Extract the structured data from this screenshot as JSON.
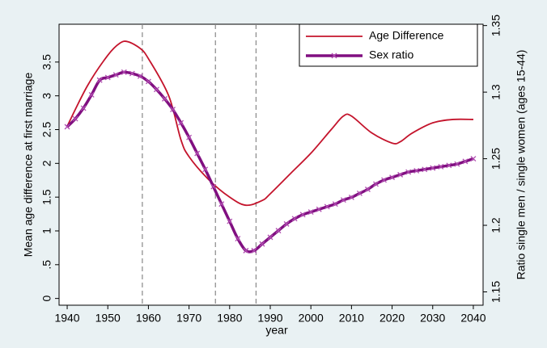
{
  "chart_data": {
    "type": "line",
    "x_label": "year",
    "y_label": "Mean age difference at first marriage",
    "y2_label": "Ratio single men / single women (ages 15-44)",
    "xlim": [
      1938,
      2042.4
    ],
    "xticks": [
      1940,
      1950,
      1960,
      1970,
      1980,
      1990,
      2000,
      2010,
      2020,
      2030,
      2040
    ],
    "ylim": [
      -0.1,
      4.06
    ],
    "yticks": [
      0,
      {
        "value": 0.5,
        "label": ".5"
      },
      1,
      1.5,
      2,
      2.5,
      3,
      3.5
    ],
    "y2lim": [
      1.14,
      1.351
    ],
    "y2ticks": [
      1.15,
      1.2,
      1.25,
      1.3,
      1.35
    ],
    "reference_lines": [
      1958.5,
      1976.5,
      1986.5
    ],
    "legend": "top-right",
    "series": [
      {
        "name": "Age Difference",
        "color": "#c4142c",
        "axis": "y",
        "x": [
          1940,
          1945,
          1950,
          1953,
          1955,
          1958,
          1960,
          1965,
          1968,
          1970,
          1975,
          1980,
          1984,
          1988,
          1990,
          1995,
          2000,
          2005,
          2008,
          2010,
          2015,
          2020,
          2022,
          2025,
          2030,
          2035,
          2040
        ],
        "values": [
          2.55,
          3.15,
          3.6,
          3.78,
          3.8,
          3.7,
          3.55,
          3.0,
          2.35,
          2.1,
          1.75,
          1.5,
          1.38,
          1.45,
          1.55,
          1.85,
          2.15,
          2.5,
          2.7,
          2.7,
          2.45,
          2.3,
          2.32,
          2.45,
          2.6,
          2.65,
          2.65
        ]
      },
      {
        "name": "Sex ratio",
        "color": "#800f80",
        "axis": "y2",
        "x": [
          1940,
          1942,
          1944,
          1946,
          1948,
          1950,
          1952,
          1954,
          1956,
          1958,
          1960,
          1962,
          1964,
          1966,
          1968,
          1970,
          1972,
          1974,
          1976,
          1978,
          1980,
          1982,
          1984,
          1986,
          1988,
          1990,
          1992,
          1994,
          1996,
          1998,
          2000,
          2002,
          2004,
          2006,
          2008,
          2010,
          2012,
          2014,
          2016,
          2018,
          2020,
          2022,
          2024,
          2026,
          2028,
          2030,
          2032,
          2034,
          2036,
          2038,
          2040
        ],
        "values": [
          1.274,
          1.28,
          1.288,
          1.298,
          1.309,
          1.311,
          1.313,
          1.315,
          1.314,
          1.312,
          1.308,
          1.302,
          1.295,
          1.287,
          1.277,
          1.266,
          1.254,
          1.242,
          1.229,
          1.216,
          1.203,
          1.19,
          1.181,
          1.181,
          1.186,
          1.191,
          1.196,
          1.201,
          1.205,
          1.208,
          1.21,
          1.212,
          1.214,
          1.216,
          1.219,
          1.221,
          1.224,
          1.227,
          1.231,
          1.234,
          1.236,
          1.238,
          1.24,
          1.241,
          1.242,
          1.243,
          1.244,
          1.245,
          1.246,
          1.248,
          1.25
        ]
      }
    ]
  }
}
